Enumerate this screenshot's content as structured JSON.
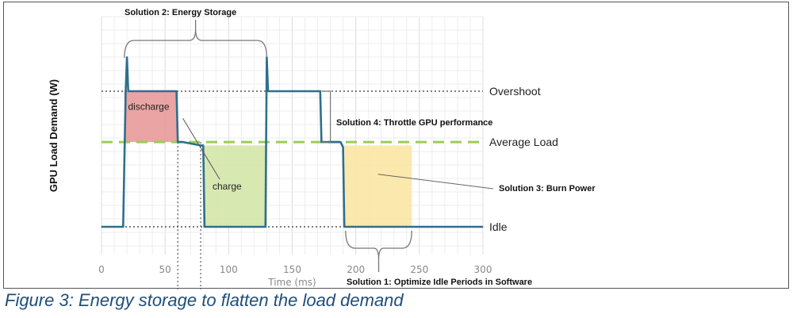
{
  "caption": "Figure 3: Energy storage to flatten the load demand",
  "chart_data": {
    "type": "line",
    "xlabel": "Time (ms)",
    "ylabel": "GPU Load Demand (W)",
    "xlim": [
      0,
      300
    ],
    "x_ticks": [
      0,
      50,
      100,
      150,
      200,
      250,
      300
    ],
    "y_ticks_labeled": false,
    "grid": true,
    "levels": [
      {
        "key": "overshoot",
        "label": "Overshoot",
        "value": 0.8,
        "style": "dotted",
        "color": "#333333"
      },
      {
        "key": "average",
        "label": "Average Load",
        "value": 0.5,
        "style": "dashed",
        "color": "#9ccc5a"
      },
      {
        "key": "idle",
        "label": "Idle",
        "value": 0.0,
        "style": "dotted",
        "color": "#333333"
      }
    ],
    "series": [
      {
        "color": "#2e6f8e",
        "x": [
          0,
          17,
          19,
          20,
          21,
          59,
          60,
          64,
          78,
          80,
          81,
          129,
          130,
          131,
          135,
          172,
          173,
          188,
          190,
          191,
          300
        ],
        "y": [
          0.0,
          0.0,
          0.8,
          1.0,
          0.8,
          0.8,
          0.5,
          0.5,
          0.48,
          0.48,
          0.0,
          0.0,
          1.0,
          0.8,
          0.8,
          0.8,
          0.5,
          0.5,
          0.47,
          0.0,
          0.0
        ]
      }
    ],
    "regions": [
      {
        "key": "discharge",
        "label": "discharge",
        "x0": 18,
        "x1": 60,
        "y0": 0.5,
        "y1": 0.8,
        "color": "#e89a9a"
      },
      {
        "key": "charge",
        "label": "charge",
        "x0": 81,
        "x1": 129,
        "y0": 0.0,
        "y1": 0.48,
        "color": "#d4e6a8"
      },
      {
        "key": "burn",
        "label": "",
        "x0": 191,
        "x1": 244,
        "y0": 0.0,
        "y1": 0.48,
        "color": "#fbe6a3"
      }
    ],
    "annotations": [
      {
        "key": "solution2",
        "text": "Solution 2: Energy Storage"
      },
      {
        "key": "solution4",
        "text": "Solution 4: Throttle GPU performance"
      },
      {
        "key": "solution3",
        "text": "Solution 3: Burn Power"
      },
      {
        "key": "solution1",
        "text": "Solution 1: Optimize Idle Periods in Software"
      }
    ]
  }
}
